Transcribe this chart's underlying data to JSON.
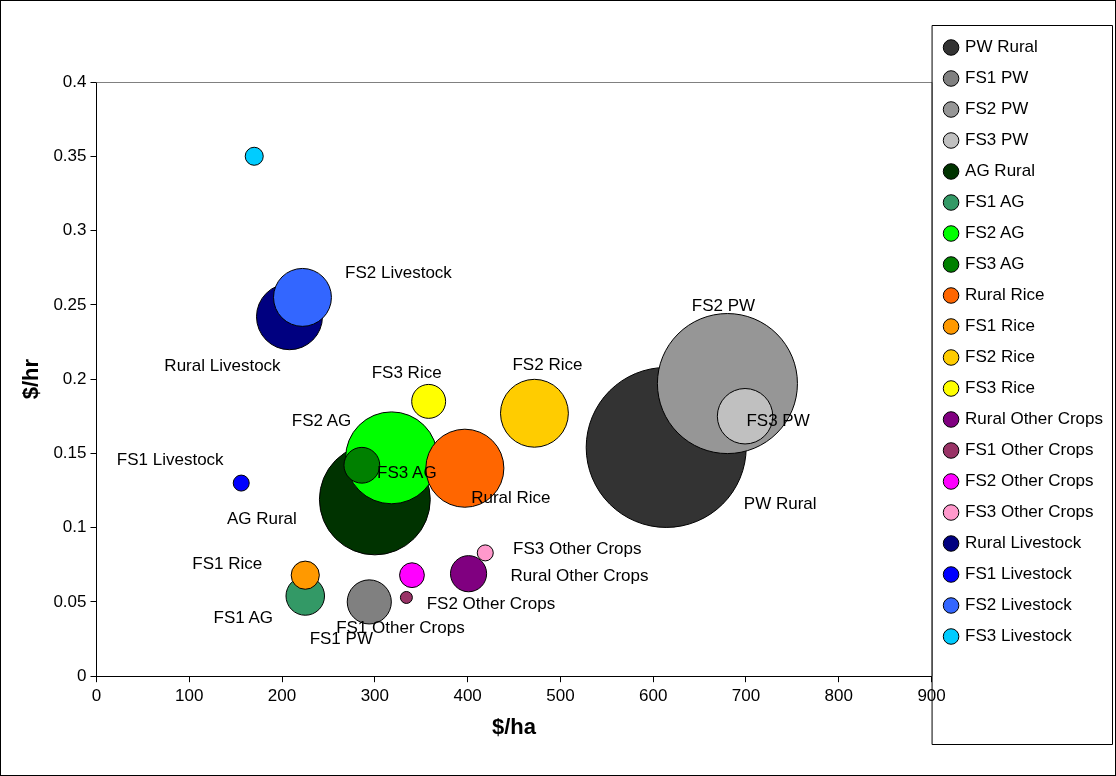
{
  "chart_data": {
    "type": "bubble",
    "xlabel": "$/ha",
    "ylabel": "$/hr",
    "xlim": [
      0,
      900
    ],
    "xticks": [
      0,
      100,
      200,
      300,
      400,
      500,
      600,
      700,
      800,
      900
    ],
    "ylim": [
      0,
      0.4
    ],
    "yticks": [
      0,
      0.05,
      0.1,
      0.15,
      0.2,
      0.25,
      0.3,
      0.35,
      0.4
    ],
    "grid": false,
    "legend": "right",
    "series": [
      {
        "name": "PW Rural",
        "color": "#333333",
        "x": [
          614
        ],
        "values": [
          0.154
        ],
        "sizes": [
          1
        ]
      },
      {
        "name": "FS1 PW",
        "color": "#808080",
        "x": [
          294
        ],
        "values": [
          0.05
        ],
        "sizes": [
          0.076
        ]
      },
      {
        "name": "FS2 PW",
        "color": "#969696",
        "x": [
          680
        ],
        "values": [
          0.197
        ],
        "sizes": [
          0.766
        ]
      },
      {
        "name": "FS3 PW",
        "color": "#c0c0c0",
        "x": [
          699
        ],
        "values": [
          0.175
        ],
        "sizes": [
          0.12
        ]
      },
      {
        "name": "AG Rural",
        "color": "#003300",
        "x": [
          300
        ],
        "values": [
          0.119
        ],
        "sizes": [
          0.48
        ]
      },
      {
        "name": "FS1 AG",
        "color": "#339966",
        "x": [
          225
        ],
        "values": [
          0.054
        ],
        "sizes": [
          0.058
        ]
      },
      {
        "name": "FS2 AG",
        "color": "#00ff00",
        "x": [
          318
        ],
        "values": [
          0.147
        ],
        "sizes": [
          0.33
        ]
      },
      {
        "name": "FS3 AG",
        "color": "#008000",
        "x": [
          286
        ],
        "values": [
          0.142
        ],
        "sizes": [
          0.05
        ]
      },
      {
        "name": "Rural Rice",
        "color": "#ff6600",
        "x": [
          397
        ],
        "values": [
          0.14
        ],
        "sizes": [
          0.238
        ]
      },
      {
        "name": "FS1 Rice",
        "color": "#ff9900",
        "x": [
          225
        ],
        "values": [
          0.068
        ],
        "sizes": [
          0.031
        ]
      },
      {
        "name": "FS2 Rice",
        "color": "#ffcc00",
        "x": [
          472
        ],
        "values": [
          0.177
        ],
        "sizes": [
          0.18
        ]
      },
      {
        "name": "FS3 Rice",
        "color": "#ffff00",
        "x": [
          358
        ],
        "values": [
          0.185
        ],
        "sizes": [
          0.045
        ]
      },
      {
        "name": "Rural Other Crops",
        "color": "#800080",
        "x": [
          401
        ],
        "values": [
          0.069
        ],
        "sizes": [
          0.051
        ]
      },
      {
        "name": "FS1 Other Crops",
        "color": "#993366",
        "x": [
          334
        ],
        "values": [
          0.053
        ],
        "sizes": [
          0.0056
        ]
      },
      {
        "name": "FS2 Other Crops",
        "color": "#ff00ff",
        "x": [
          340
        ],
        "values": [
          0.068
        ],
        "sizes": [
          0.024
        ]
      },
      {
        "name": "FS3 Other Crops",
        "color": "#ff99cc",
        "x": [
          419
        ],
        "values": [
          0.083
        ],
        "sizes": [
          0.01
        ]
      },
      {
        "name": "Rural Livestock",
        "color": "#000080",
        "x": [
          208
        ],
        "values": [
          0.242
        ],
        "sizes": [
          0.17
        ]
      },
      {
        "name": "FS1 Livestock",
        "color": "#0000ff",
        "x": [
          156
        ],
        "values": [
          0.13
        ],
        "sizes": [
          0.01
        ]
      },
      {
        "name": "FS2 Livestock",
        "color": "#3366ff",
        "x": [
          222
        ],
        "values": [
          0.255
        ],
        "sizes": [
          0.131
        ]
      },
      {
        "name": "FS3 Livestock",
        "color": "#00ccff",
        "x": [
          170
        ],
        "values": [
          0.35
        ],
        "sizes": [
          0.0127
        ]
      }
    ]
  }
}
